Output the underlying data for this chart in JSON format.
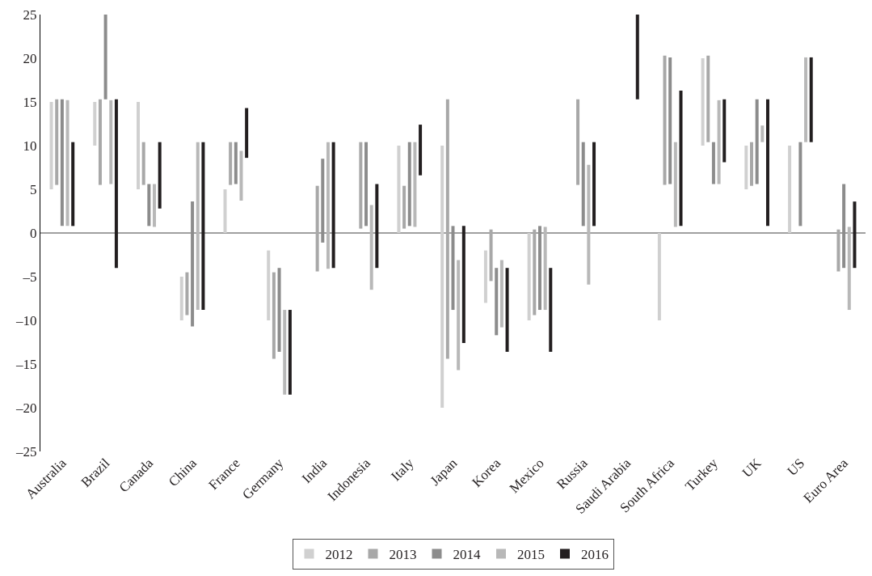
{
  "chart_data": {
    "type": "bar",
    "categories": [
      "Australia",
      "Brazil",
      "Canada",
      "China",
      "France",
      "Germany",
      "India",
      "Indonesia",
      "Italy",
      "Japan",
      "Korea",
      "Mexico",
      "Russia",
      "Saudi Arabia",
      "South Africa",
      "Turkey",
      "UK",
      "US",
      "Euro Area"
    ],
    "series": [
      {
        "name": "2012",
        "color": "#d0d0d0",
        "base": [
          5,
          10,
          5,
          -10,
          0,
          -10,
          null,
          null,
          0,
          -20,
          -8,
          -10,
          null,
          null,
          -10,
          10,
          5,
          0,
          null
        ],
        "values": [
          10,
          5,
          10,
          5,
          5,
          8,
          null,
          null,
          10,
          30,
          6,
          10,
          null,
          null,
          10,
          10,
          5,
          10,
          null
        ]
      },
      {
        "name": "2013",
        "color": "#a8a8a8",
        "base": [
          5.5,
          5.5,
          5.5,
          -9.4,
          5.5,
          -14.4,
          -4.4,
          0.5,
          0.5,
          -14.4,
          -5.5,
          -9.4,
          5.5,
          null,
          5.5,
          10.4,
          5.4,
          null,
          -4.4
        ],
        "values": [
          9.8,
          9.8,
          4.9,
          4.9,
          4.9,
          9.9,
          9.8,
          9.9,
          4.9,
          29.7,
          5.9,
          9.8,
          9.8,
          null,
          14.8,
          9.9,
          5,
          null,
          4.8
        ]
      },
      {
        "name": "2014",
        "color": "#8c8c8c",
        "base": [
          0.8,
          15.3,
          0.8,
          -10.7,
          5.6,
          -13.6,
          -1.1,
          0.8,
          0.8,
          -8.8,
          -11.7,
          -8.8,
          0.8,
          null,
          5.6,
          5.6,
          5.6,
          0.8,
          -4
        ],
        "values": [
          14.5,
          9.7,
          4.8,
          14.3,
          4.8,
          9.6,
          9.6,
          9.6,
          9.6,
          9.6,
          7.7,
          9.6,
          9.6,
          null,
          14.5,
          4.8,
          9.7,
          9.6,
          9.6
        ]
      },
      {
        "name": "2015",
        "color": "#b8b8b8",
        "base": [
          0.8,
          5.6,
          0.7,
          -8.8,
          3.7,
          -18.5,
          -4.1,
          -6.5,
          0.7,
          -15.7,
          -10.8,
          -8.8,
          -5.9,
          null,
          0.7,
          5.6,
          10.4,
          10.4,
          -8.8
        ],
        "values": [
          14.4,
          9.6,
          4.9,
          19.2,
          5.7,
          9.7,
          14.5,
          9.7,
          9.7,
          12.6,
          7.7,
          9.5,
          13.7,
          null,
          9.7,
          9.6,
          1.9,
          9.7,
          9.5
        ]
      },
      {
        "name": "2016",
        "color": "#231f20",
        "base": [
          0.8,
          -4,
          2.8,
          -8.8,
          8.6,
          -18.5,
          -4,
          -4,
          6.6,
          -12.6,
          -13.6,
          -13.6,
          0.8,
          15.3,
          0.8,
          8.1,
          0.8,
          10.4,
          -4
        ],
        "values": [
          9.6,
          19.3,
          7.6,
          19.2,
          5.7,
          9.7,
          14.4,
          9.6,
          5.8,
          13.4,
          9.6,
          9.6,
          9.6,
          9.7,
          15.5,
          7.2,
          14.5,
          9.7,
          7.6
        ]
      }
    ],
    "ylim": [
      -25,
      25
    ],
    "yticks": [
      {
        "value": -25,
        "label": "–25"
      },
      {
        "value": -20,
        "label": "–20"
      },
      {
        "value": -15,
        "label": "–15"
      },
      {
        "value": -10,
        "label": "–10"
      },
      {
        "value": -5,
        "label": "–5"
      },
      0,
      5,
      10,
      15,
      20,
      25
    ],
    "ref_lines": [
      {
        "axis": "y",
        "value": 0,
        "color": "#808080"
      }
    ],
    "legend": "bottom"
  }
}
